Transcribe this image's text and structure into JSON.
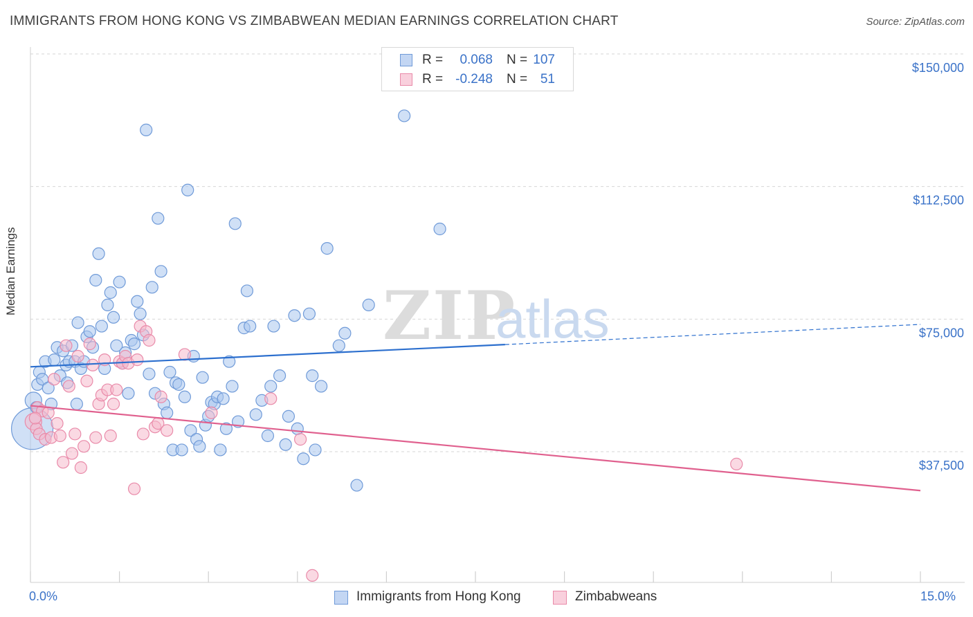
{
  "header": {
    "title": "IMMIGRANTS FROM HONG KONG VS ZIMBABWEAN MEDIAN EARNINGS CORRELATION CHART",
    "source": "Source: ZipAtlas.com"
  },
  "watermark": {
    "zip": "ZIP",
    "atlas": "atlas"
  },
  "legend": {
    "rows": [
      {
        "r_label": "R =",
        "r_value": "0.068",
        "n_label": "N =",
        "n_value": "107"
      },
      {
        "r_label": "R =",
        "r_value": "-0.248",
        "n_label": "N =",
        "n_value": "51"
      }
    ]
  },
  "bottom_legend": {
    "hk": "Immigrants from Hong Kong",
    "zw": "Zimbabweans"
  },
  "colors": {
    "hk_fill": "#a9c6ee",
    "hk_stroke": "#6f9ad8",
    "hk_line": "#2c6fce",
    "zw_fill": "#f5b9cc",
    "zw_stroke": "#e98aa9",
    "zw_line": "#e0608e",
    "tick_text": "#3a72c8",
    "grid": "#d6d6d6"
  },
  "chart_data": {
    "type": "scatter",
    "title": "IMMIGRANTS FROM HONG KONG VS ZIMBABWEAN MEDIAN EARNINGS CORRELATION CHART",
    "xlabel": "",
    "ylabel": "Median Earnings",
    "xlim": [
      0,
      15
    ],
    "ylim": [
      0,
      155000
    ],
    "x_tick_labels": [
      "0.0%",
      "15.0%"
    ],
    "y_ticks": [
      37500,
      75000,
      112500,
      150000
    ],
    "y_tick_labels": [
      "$37,500",
      "$75,000",
      "$112,500",
      "$150,000"
    ],
    "grid": true,
    "legend_position": "top-center",
    "series": [
      {
        "name": "Immigrants from Hong Kong",
        "trend": {
          "x0": 0,
          "y0": 61500,
          "x1": 8.0,
          "y1": 67800,
          "x_dashed_end": 15,
          "y_dashed_end": 73500
        },
        "points": [
          [
            0.03,
            44000,
            36
          ],
          [
            0.05,
            52000,
            12
          ],
          [
            0.1,
            50000,
            10
          ],
          [
            0.12,
            56500,
            10
          ],
          [
            0.15,
            60000,
            10
          ],
          [
            0.2,
            58000,
            10
          ],
          [
            0.25,
            63000,
            10
          ],
          [
            0.3,
            55500,
            10
          ],
          [
            0.35,
            51000,
            10
          ],
          [
            0.4,
            63500,
            10
          ],
          [
            0.45,
            67000,
            10
          ],
          [
            0.5,
            59000,
            10
          ],
          [
            0.55,
            66000,
            10
          ],
          [
            0.6,
            62000,
            10
          ],
          [
            0.62,
            57000,
            10
          ],
          [
            0.65,
            63000,
            10
          ],
          [
            0.7,
            67500,
            10
          ],
          [
            0.75,
            63000,
            10
          ],
          [
            0.78,
            51000,
            10
          ],
          [
            0.8,
            74000,
            10
          ],
          [
            0.85,
            61000,
            10
          ],
          [
            0.9,
            63000,
            10
          ],
          [
            0.95,
            70000,
            10
          ],
          [
            1.0,
            71500,
            10
          ],
          [
            1.05,
            67000,
            10
          ],
          [
            1.1,
            86000,
            10
          ],
          [
            1.15,
            93500,
            10
          ],
          [
            1.2,
            73000,
            10
          ],
          [
            1.25,
            61000,
            10
          ],
          [
            1.3,
            79000,
            10
          ],
          [
            1.35,
            82500,
            10
          ],
          [
            1.4,
            75500,
            10
          ],
          [
            1.45,
            67500,
            10
          ],
          [
            1.5,
            85500,
            10
          ],
          [
            1.55,
            62500,
            10
          ],
          [
            1.6,
            65500,
            10
          ],
          [
            1.65,
            54000,
            10
          ],
          [
            1.7,
            69000,
            10
          ],
          [
            1.75,
            68000,
            10
          ],
          [
            1.8,
            80000,
            10
          ],
          [
            1.85,
            76500,
            10
          ],
          [
            1.9,
            70500,
            10
          ],
          [
            1.95,
            128500,
            10
          ],
          [
            2.0,
            59500,
            10
          ],
          [
            2.05,
            84000,
            10
          ],
          [
            2.1,
            54000,
            10
          ],
          [
            2.15,
            103500,
            10
          ],
          [
            2.2,
            88500,
            10
          ],
          [
            2.25,
            51000,
            10
          ],
          [
            2.3,
            48500,
            10
          ],
          [
            2.35,
            60000,
            10
          ],
          [
            2.4,
            38000,
            10
          ],
          [
            2.45,
            57000,
            10
          ],
          [
            2.5,
            56500,
            10
          ],
          [
            2.55,
            38000,
            10
          ],
          [
            2.6,
            53000,
            10
          ],
          [
            2.65,
            111500,
            10
          ],
          [
            2.7,
            43500,
            10
          ],
          [
            2.75,
            64500,
            10
          ],
          [
            2.8,
            41000,
            10
          ],
          [
            2.85,
            39000,
            10
          ],
          [
            2.9,
            58500,
            10
          ],
          [
            2.95,
            45000,
            10
          ],
          [
            3.0,
            47500,
            10
          ],
          [
            3.05,
            51500,
            10
          ],
          [
            3.1,
            51000,
            10
          ],
          [
            3.15,
            53000,
            10
          ],
          [
            3.2,
            38000,
            10
          ],
          [
            3.25,
            52500,
            10
          ],
          [
            3.3,
            44000,
            10
          ],
          [
            3.35,
            63000,
            10
          ],
          [
            3.4,
            56000,
            10
          ],
          [
            3.45,
            102000,
            10
          ],
          [
            3.5,
            46000,
            10
          ],
          [
            3.6,
            72500,
            10
          ],
          [
            3.65,
            83000,
            10
          ],
          [
            3.7,
            73000,
            10
          ],
          [
            3.8,
            48000,
            10
          ],
          [
            3.9,
            52000,
            10
          ],
          [
            4.0,
            42000,
            10
          ],
          [
            4.05,
            56000,
            10
          ],
          [
            4.1,
            73000,
            10
          ],
          [
            4.2,
            59000,
            10
          ],
          [
            4.3,
            39500,
            10
          ],
          [
            4.35,
            47500,
            10
          ],
          [
            4.45,
            76000,
            10
          ],
          [
            4.5,
            44000,
            10
          ],
          [
            4.6,
            35500,
            10
          ],
          [
            4.7,
            76500,
            10
          ],
          [
            4.75,
            59000,
            10
          ],
          [
            4.8,
            38000,
            10
          ],
          [
            4.9,
            56000,
            10
          ],
          [
            5.0,
            95000,
            10
          ],
          [
            5.2,
            67500,
            10
          ],
          [
            5.3,
            71000,
            10
          ],
          [
            5.5,
            28000,
            10
          ],
          [
            5.7,
            79000,
            10
          ],
          [
            6.3,
            132500,
            10
          ],
          [
            6.9,
            100500,
            10
          ]
        ]
      },
      {
        "name": "Zimbabweans",
        "trend": {
          "x0": 0,
          "y0": 50500,
          "x1": 15,
          "y1": 26500
        },
        "points": [
          [
            0.05,
            46000,
            14
          ],
          [
            0.1,
            44000,
            10
          ],
          [
            0.12,
            50000,
            10
          ],
          [
            0.15,
            42500,
            10
          ],
          [
            0.2,
            49000,
            10
          ],
          [
            0.25,
            41000,
            10
          ],
          [
            0.3,
            48500,
            10
          ],
          [
            0.35,
            41500,
            10
          ],
          [
            0.4,
            58000,
            10
          ],
          [
            0.45,
            45500,
            10
          ],
          [
            0.5,
            42000,
            10
          ],
          [
            0.55,
            34500,
            10
          ],
          [
            0.6,
            67500,
            10
          ],
          [
            0.65,
            56000,
            10
          ],
          [
            0.7,
            37000,
            10
          ],
          [
            0.75,
            42500,
            10
          ],
          [
            0.8,
            64500,
            10
          ],
          [
            0.85,
            33000,
            10
          ],
          [
            0.9,
            39000,
            10
          ],
          [
            0.95,
            57500,
            10
          ],
          [
            1.0,
            68000,
            10
          ],
          [
            1.05,
            62000,
            10
          ],
          [
            1.1,
            41500,
            10
          ],
          [
            1.15,
            51000,
            10
          ],
          [
            1.2,
            53500,
            10
          ],
          [
            1.25,
            63500,
            10
          ],
          [
            1.3,
            55000,
            10
          ],
          [
            1.35,
            42000,
            10
          ],
          [
            1.4,
            51000,
            10
          ],
          [
            1.45,
            55000,
            10
          ],
          [
            1.5,
            63000,
            10
          ],
          [
            1.55,
            62500,
            10
          ],
          [
            1.6,
            64500,
            10
          ],
          [
            1.65,
            62500,
            10
          ],
          [
            1.75,
            27000,
            10
          ],
          [
            1.8,
            63500,
            10
          ],
          [
            1.85,
            73000,
            10
          ],
          [
            1.9,
            42500,
            10
          ],
          [
            1.95,
            71500,
            10
          ],
          [
            2.0,
            69000,
            10
          ],
          [
            2.1,
            44500,
            10
          ],
          [
            2.15,
            45500,
            10
          ],
          [
            2.2,
            53000,
            10
          ],
          [
            2.3,
            43500,
            10
          ],
          [
            2.6,
            65000,
            10
          ],
          [
            3.05,
            48500,
            10
          ],
          [
            4.05,
            52500,
            10
          ],
          [
            4.55,
            41000,
            10
          ],
          [
            4.75,
            2500,
            10
          ],
          [
            11.9,
            34000,
            10
          ],
          [
            0.08,
            47000,
            10
          ]
        ]
      }
    ]
  }
}
